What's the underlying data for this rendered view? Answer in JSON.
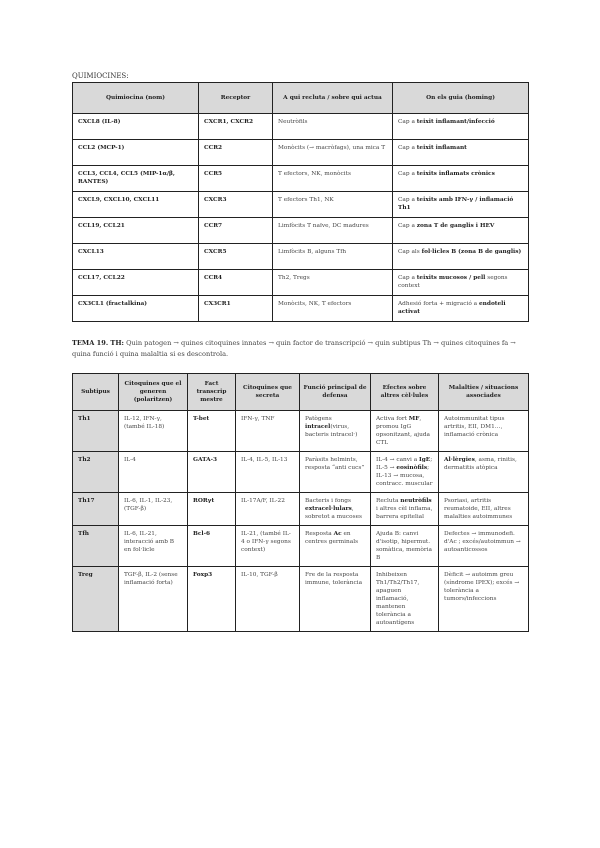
{
  "section1": {
    "title": "QUIMIOCINES:",
    "headers": [
      "Quimiocina (nom)",
      "Receptor",
      "A qui recluta / sobre qui actua",
      "On els guia (homing)"
    ],
    "rows": [
      [
        [
          [
            "CXCL8 (IL-8)",
            1
          ]
        ],
        [
          [
            "CXCR1, CXCR2",
            1
          ]
        ],
        [
          [
            "Neutròfils",
            0
          ]
        ],
        [
          [
            "Cap a ",
            0
          ],
          [
            "teixit inflamant/infecció",
            1
          ]
        ]
      ],
      [
        [
          [
            "CCL2 (MCP-1)",
            1
          ]
        ],
        [
          [
            "CCR2",
            1
          ]
        ],
        [
          [
            "Monòcits (→ macròfags), una mica T",
            0
          ]
        ],
        [
          [
            "Cap a ",
            0
          ],
          [
            "teixit inflamant",
            1
          ]
        ]
      ],
      [
        [
          [
            "CCL3, CCL4, CCL5 (MIP-1α/β, RANTES)",
            1
          ]
        ],
        [
          [
            "CCR5",
            1
          ]
        ],
        [
          [
            "T efectors, NK, monòcits",
            0
          ]
        ],
        [
          [
            "Cap a ",
            0
          ],
          [
            "teixits inflamats crònics",
            1
          ]
        ]
      ],
      [
        [
          [
            "CXCL9, CXCL10, CXCL11",
            1
          ]
        ],
        [
          [
            "CXCR3",
            1
          ]
        ],
        [
          [
            "T efectors Th1, NK",
            0
          ]
        ],
        [
          [
            "Cap a ",
            0
          ],
          [
            "teixits amb IFN-γ / inflamació Th1",
            1
          ]
        ]
      ],
      [
        [
          [
            "CCL19, CCL21",
            1
          ]
        ],
        [
          [
            "CCR7",
            1
          ]
        ],
        [
          [
            "Limfòcits T naïve, DC madures",
            0
          ]
        ],
        [
          [
            "Cap a ",
            0
          ],
          [
            "zona T de ganglis i HEV",
            1
          ]
        ]
      ],
      [
        [
          [
            "CXCL13",
            1
          ]
        ],
        [
          [
            "CXCR5",
            1
          ]
        ],
        [
          [
            "Limfòcits B, alguns Tfh",
            0
          ]
        ],
        [
          [
            "Cap als ",
            0
          ],
          [
            "fol·licles B (zona B de ganglis)",
            1
          ]
        ]
      ],
      [
        [
          [
            "CCL17, CCL22",
            1
          ]
        ],
        [
          [
            "CCR4",
            1
          ]
        ],
        [
          [
            "Th2, Tregs",
            0
          ]
        ],
        [
          [
            "Cap a ",
            0
          ],
          [
            "teixits mucosos / pell",
            1
          ],
          [
            " segons context",
            0
          ]
        ]
      ],
      [
        [
          [
            "CX3CL1 (fractalkina)",
            1
          ]
        ],
        [
          [
            "CX3CR1",
            1
          ]
        ],
        [
          [
            "Monòcits, NK, T efectors",
            0
          ]
        ],
        [
          [
            "Adhesió forta + migració a ",
            0
          ],
          [
            "endoteli activat",
            1
          ]
        ]
      ]
    ]
  },
  "intro": [
    [
      "TEMA 19. TH:",
      1
    ],
    [
      " Quin patogen → quines citoquines innates → quin factor de transcripció → quin subtipus Th → quines citoquines fa → quina funció i quina malaltia si es descontrola.",
      0
    ]
  ],
  "section2": {
    "headers": [
      "Subtipus",
      "Citoquines que el generen (polaritzen)",
      "Fact transcrip mestre",
      "Citoquines que secreta",
      "Funció principal de defensa",
      "Efectes sobre altres cèl·lules",
      "Malalties / situacions associades"
    ],
    "rows": [
      [
        [
          [
            "Th1",
            1
          ]
        ],
        [
          [
            "IL-12, IFN-γ, (també IL-18)",
            0
          ]
        ],
        [
          [
            "T-bet",
            1
          ]
        ],
        [
          [
            "IFN-γ, TNF",
            0
          ]
        ],
        [
          [
            "Patògens ",
            0
          ],
          [
            "intracel",
            1
          ],
          [
            "(virus, bacteris intracel·)",
            0
          ]
        ],
        [
          [
            "Activa fort ",
            0
          ],
          [
            "MF",
            1
          ],
          [
            ", promou IgG opsonitzant, ajuda CTL",
            0
          ]
        ],
        [
          [
            "Autoimmunitat tipus artritis, EII, DM1…, inflamació crònica",
            0
          ]
        ]
      ],
      [
        [
          [
            "Th2",
            1
          ]
        ],
        [
          [
            "IL-4",
            0
          ]
        ],
        [
          [
            "GATA-3",
            1
          ]
        ],
        [
          [
            "IL-4, IL-5, IL-13",
            0
          ]
        ],
        [
          [
            "Paràsits helmints, resposta “anti cucs”",
            0
          ]
        ],
        [
          [
            "IL-4 → canvi a ",
            0
          ],
          [
            "IgE",
            1
          ],
          [
            "; IL-5 → ",
            0
          ],
          [
            "eosinòfils",
            1
          ],
          [
            "; IL-13 → mucosa, contracc. muscular",
            0
          ]
        ],
        [
          [
            "Al·lèrgies",
            1
          ],
          [
            ", asma, rinitis, dermatitis atòpica",
            0
          ]
        ]
      ],
      [
        [
          [
            "Th17",
            1
          ]
        ],
        [
          [
            "IL-6, IL-1, IL-23, (TGF-β)",
            0
          ]
        ],
        [
          [
            "RORγt",
            1
          ]
        ],
        [
          [
            "IL-17A/F, IL-22",
            0
          ]
        ],
        [
          [
            "Bacteris i fongs ",
            0
          ],
          [
            "extracel·lulars",
            1
          ],
          [
            ", sobretot a mucoses",
            0
          ]
        ],
        [
          [
            "Recluta ",
            0
          ],
          [
            "neutròfils",
            1
          ],
          [
            " i altres cèl inflama, barrera epitelial",
            0
          ]
        ],
        [
          [
            "Psoriasi, artritis reumatoide, EII, altres malalties autoimmunes",
            0
          ]
        ]
      ],
      [
        [
          [
            "Tfh",
            1
          ]
        ],
        [
          [
            "IL-6, IL-21, interacció amb B en fol·licle",
            0
          ]
        ],
        [
          [
            "Bcl-6",
            1
          ]
        ],
        [
          [
            "IL-21, (també IL-4 o IFN-γ segons context)",
            0
          ]
        ],
        [
          [
            "Resposta ",
            0
          ],
          [
            "Ac",
            1
          ],
          [
            " en centres germinals",
            0
          ]
        ],
        [
          [
            "Ajuda B: canvi d'isotip, hipermut. somàtica, memòria B",
            0
          ]
        ],
        [
          [
            "Defectes → immunodefi. d'Ac ; excés/autoimmun → autoanticossos",
            0
          ]
        ]
      ],
      [
        [
          [
            "Treg",
            1
          ]
        ],
        [
          [
            "TGF-β, IL-2 (sense inflamació forta)",
            0
          ]
        ],
        [
          [
            "Foxp3",
            1
          ]
        ],
        [
          [
            "IL-10, TGF-β",
            0
          ]
        ],
        [
          [
            "Fre de la resposta immune, tolerància",
            0
          ]
        ],
        [
          [
            "Inhibeixen Th1/Th2/Th17, apaguen inflamació, mantenen tolerància a autoantígens",
            0
          ]
        ],
        [
          [
            "Dèficit → autoimm greu (síndrome IPEX); excés → tolerància a tumors/infeccions",
            0
          ]
        ]
      ]
    ]
  }
}
